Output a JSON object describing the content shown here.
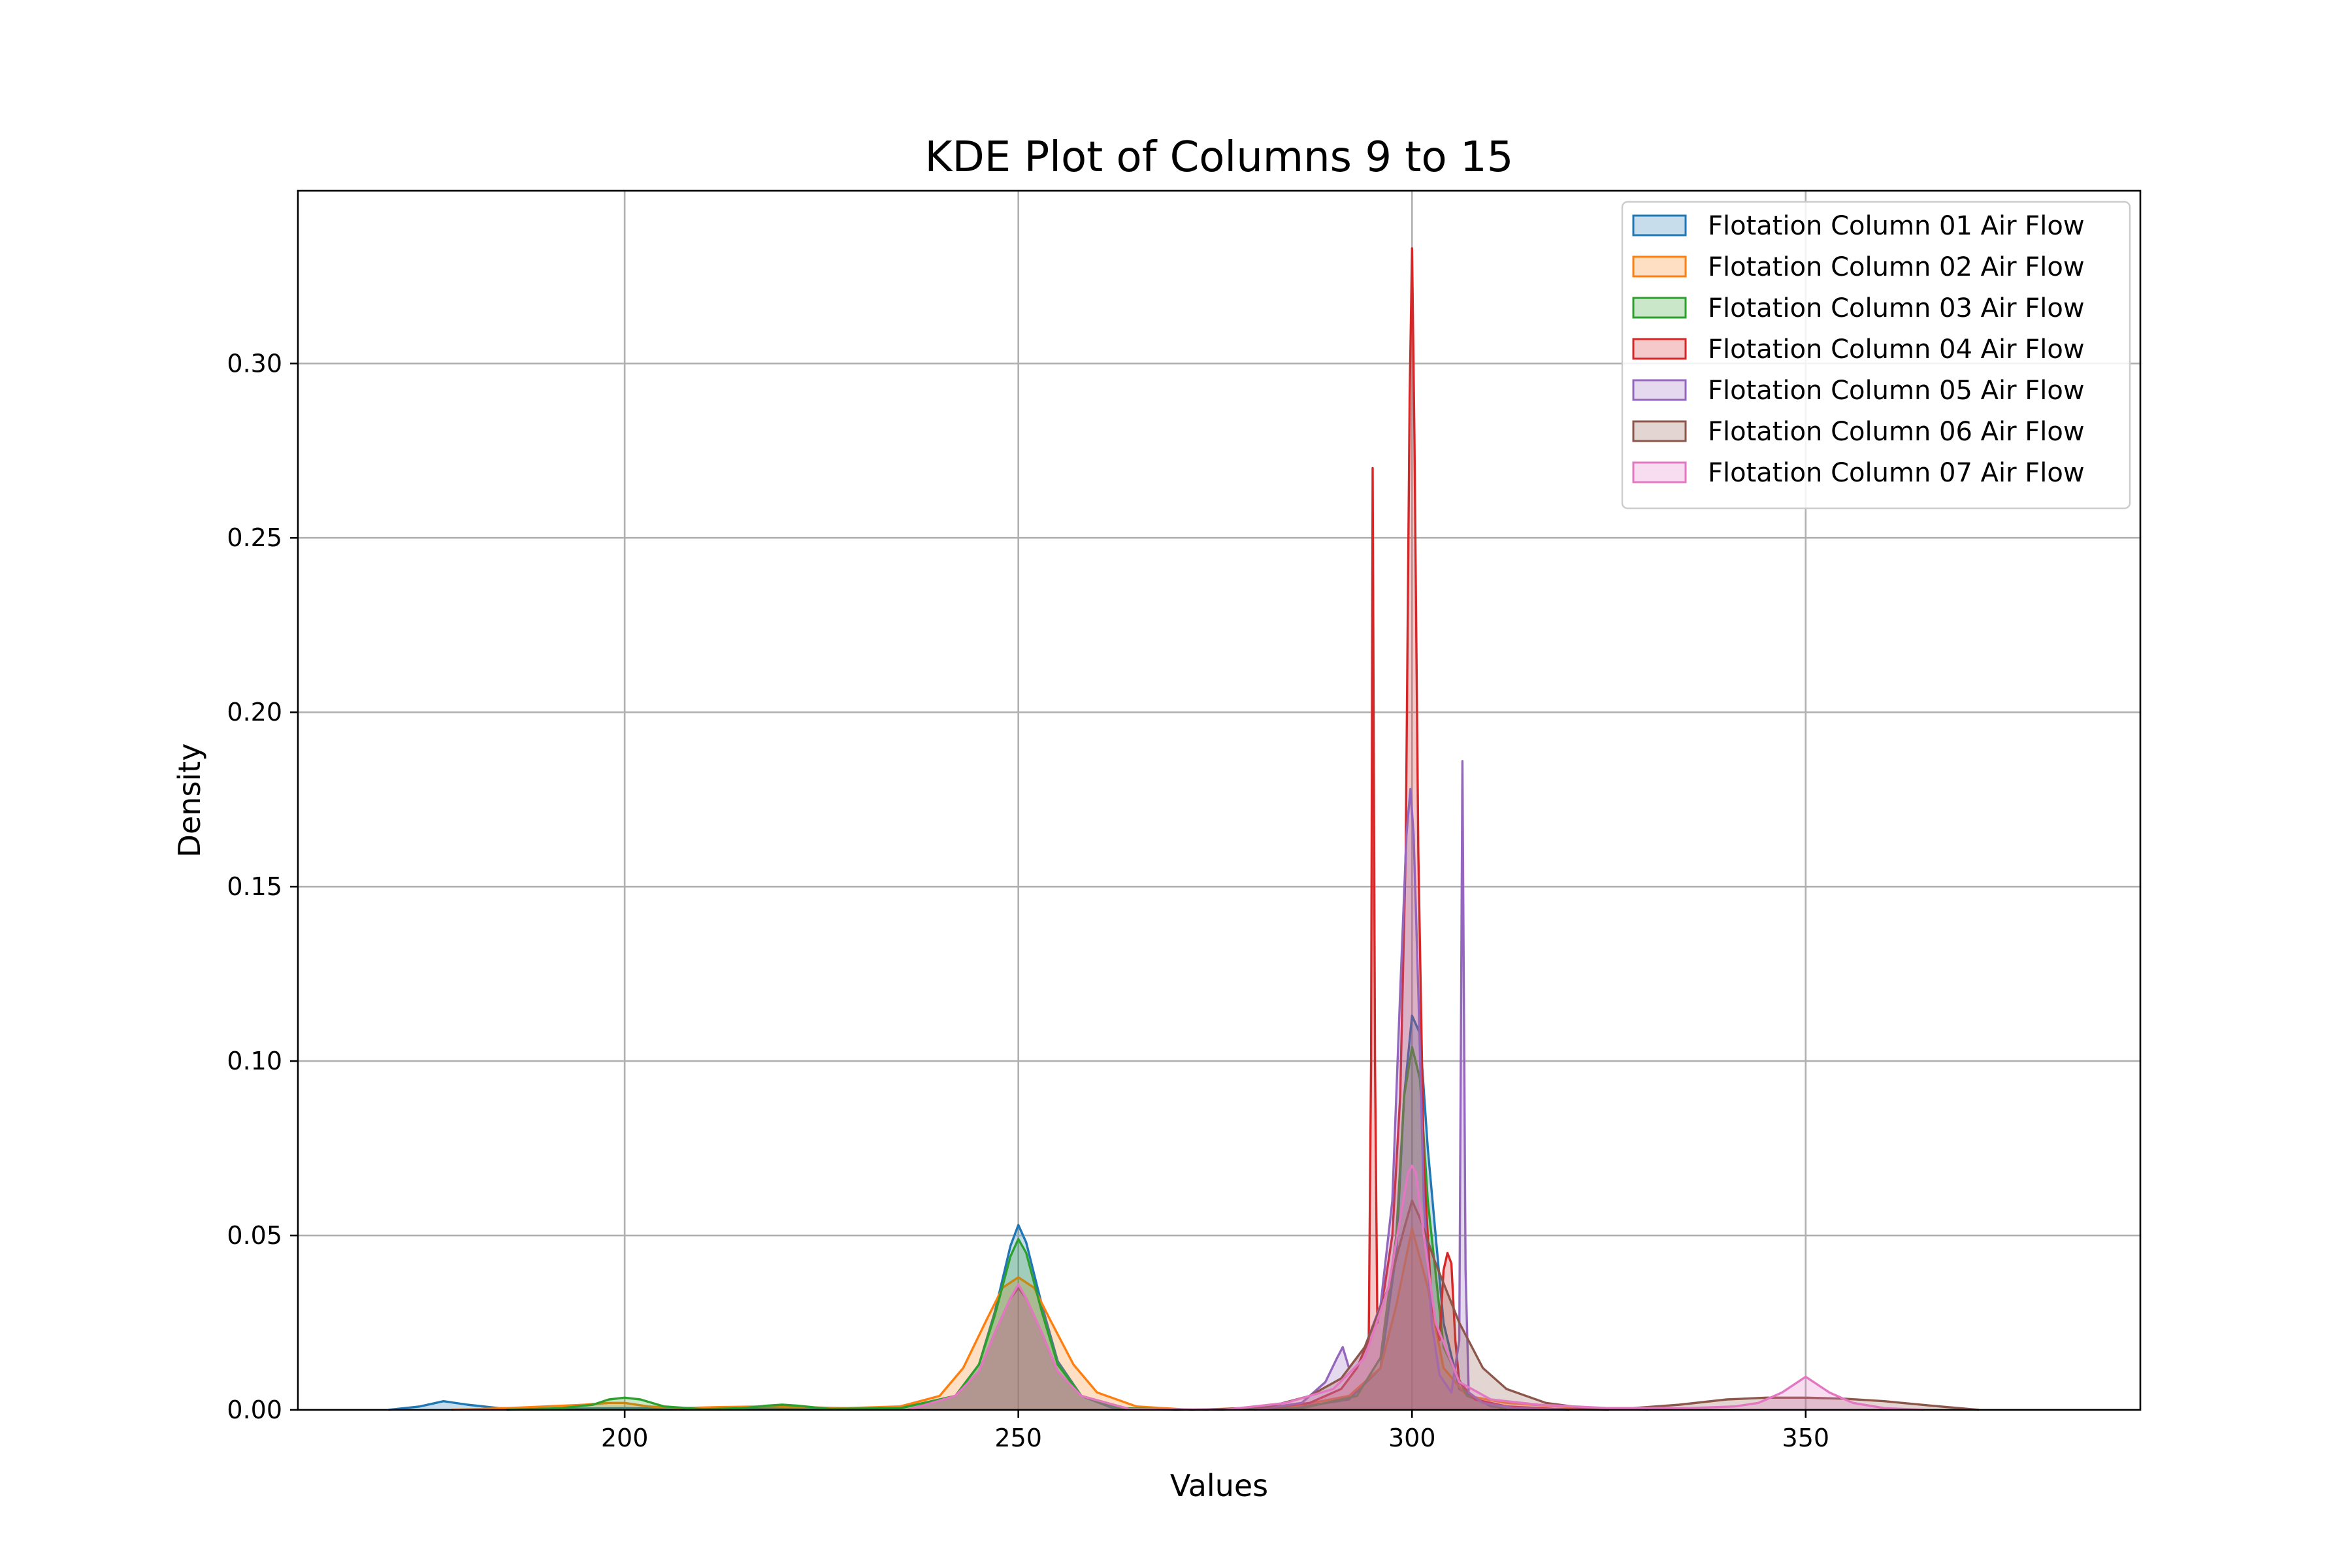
{
  "chart_data": {
    "type": "area",
    "title": "KDE Plot of Columns 9 to 15",
    "xlabel": "Values",
    "ylabel": "Density",
    "xlim": [
      158.5,
      392.5
    ],
    "ylim": [
      0,
      0.3495
    ],
    "xticks": [
      200,
      250,
      300,
      350
    ],
    "xtick_labels": [
      "200",
      "250",
      "300",
      "350"
    ],
    "yticks": [
      0.0,
      0.05,
      0.1,
      0.15,
      0.2,
      0.25,
      0.3
    ],
    "ytick_labels": [
      "0.00",
      "0.05",
      "0.10",
      "0.15",
      "0.20",
      "0.25",
      "0.30"
    ],
    "grid": true,
    "legend_position": "top-right",
    "series": [
      {
        "name": "Flotation Column 01 Air Flow",
        "color": "#1f77b4",
        "x": [
          170,
          174,
          177,
          180,
          184,
          190,
          200,
          210,
          220,
          235,
          242,
          245,
          247,
          249,
          250,
          251,
          253,
          255,
          258,
          262,
          270,
          285,
          292,
          296,
          298,
          299,
          300,
          301,
          302,
          304,
          306,
          310,
          315,
          320
        ],
        "y": [
          0,
          0.001,
          0.0025,
          0.0015,
          0.0005,
          0.0003,
          0.0005,
          0.0003,
          0.0005,
          0.0005,
          0.004,
          0.013,
          0.028,
          0.047,
          0.053,
          0.048,
          0.03,
          0.014,
          0.004,
          0.0005,
          0,
          0.0005,
          0.003,
          0.012,
          0.045,
          0.09,
          0.113,
          0.108,
          0.075,
          0.025,
          0.006,
          0.001,
          0.0002,
          0
        ]
      },
      {
        "name": "Flotation Column 02 Air Flow",
        "color": "#ff7f0e",
        "x": [
          178,
          185,
          190,
          195,
          198,
          200,
          203,
          207,
          212,
          218,
          222,
          228,
          235,
          240,
          243,
          246,
          248,
          250,
          252,
          254,
          257,
          260,
          265,
          272,
          285,
          292,
          296,
          298,
          300,
          302,
          304,
          307,
          312,
          320,
          330
        ],
        "y": [
          0,
          0.0005,
          0.001,
          0.0015,
          0.002,
          0.002,
          0.001,
          0.0005,
          0.0008,
          0.001,
          0.0008,
          0.0005,
          0.001,
          0.004,
          0.012,
          0.026,
          0.035,
          0.038,
          0.035,
          0.026,
          0.013,
          0.005,
          0.001,
          0,
          0.001,
          0.004,
          0.012,
          0.03,
          0.052,
          0.035,
          0.012,
          0.004,
          0.002,
          0.0008,
          0
        ]
      },
      {
        "name": "Flotation Column 03 Air Flow",
        "color": "#2ca02c",
        "x": [
          185,
          192,
          196,
          198,
          200,
          202,
          205,
          210,
          215,
          218,
          220,
          222,
          226,
          235,
          242,
          245,
          247,
          249,
          250,
          251,
          253,
          255,
          258,
          263,
          272,
          286,
          293,
          296,
          298,
          299,
          300,
          301,
          302,
          304,
          307,
          312
        ],
        "y": [
          0,
          0.0005,
          0.0015,
          0.003,
          0.0035,
          0.003,
          0.001,
          0.0002,
          0.0005,
          0.0012,
          0.0015,
          0.0012,
          0.0003,
          0.0005,
          0.004,
          0.013,
          0.027,
          0.044,
          0.049,
          0.045,
          0.028,
          0.013,
          0.004,
          0.0005,
          0,
          0.0005,
          0.004,
          0.015,
          0.05,
          0.09,
          0.104,
          0.095,
          0.06,
          0.018,
          0.004,
          0
        ]
      },
      {
        "name": "Flotation Column 04 Air Flow",
        "color": "#d62728",
        "x": [
          280,
          287,
          291,
          293,
          294.5,
          294.8,
          295.0,
          295.3,
          295.6,
          296.5,
          297.5,
          298.5,
          299.2,
          299.7,
          300.0,
          300.3,
          300.8,
          301.5,
          302.5,
          303.5,
          304.0,
          304.5,
          305.0,
          305.5,
          306,
          308,
          312,
          318,
          325
        ],
        "y": [
          0,
          0.002,
          0.006,
          0.012,
          0.02,
          0.1,
          0.27,
          0.1,
          0.025,
          0.035,
          0.05,
          0.09,
          0.16,
          0.29,
          0.333,
          0.28,
          0.16,
          0.07,
          0.03,
          0.02,
          0.04,
          0.045,
          0.042,
          0.02,
          0.008,
          0.003,
          0.001,
          0.0003,
          0
        ]
      },
      {
        "name": "Flotation Column 05 Air Flow",
        "color": "#9467bd",
        "x": [
          280,
          286,
          289,
          290.5,
          291.2,
          292,
          294,
          296,
          297.5,
          298.5,
          299.3,
          299.8,
          300.2,
          300.8,
          301.5,
          302.5,
          303.5,
          305,
          306.0,
          306.4,
          306.8,
          307.2,
          309,
          313,
          320
        ],
        "y": [
          0,
          0.002,
          0.008,
          0.015,
          0.018,
          0.012,
          0.018,
          0.03,
          0.06,
          0.12,
          0.165,
          0.178,
          0.165,
          0.12,
          0.06,
          0.025,
          0.01,
          0.005,
          0.02,
          0.186,
          0.04,
          0.005,
          0.002,
          0.0005,
          0
        ]
      },
      {
        "name": "Flotation Column 06 Air Flow",
        "color": "#8c564b",
        "x": [
          236,
          242,
          245,
          247,
          249,
          250,
          251,
          253,
          255,
          258,
          264,
          274,
          282,
          287,
          291,
          294,
          297,
          299,
          300,
          301,
          303,
          306,
          309,
          312,
          317,
          322,
          328,
          334,
          340,
          345,
          350,
          355,
          360,
          366,
          372
        ],
        "y": [
          0,
          0.004,
          0.011,
          0.022,
          0.032,
          0.035,
          0.032,
          0.022,
          0.011,
          0.004,
          0.0003,
          0,
          0.001,
          0.004,
          0.009,
          0.018,
          0.035,
          0.052,
          0.06,
          0.055,
          0.042,
          0.025,
          0.012,
          0.006,
          0.002,
          0.0005,
          0.0005,
          0.0015,
          0.003,
          0.0035,
          0.0035,
          0.0032,
          0.0025,
          0.0012,
          0
        ]
      },
      {
        "name": "Flotation Column 07 Air Flow",
        "color": "#e377c2",
        "x": [
          236,
          242,
          245,
          247,
          249,
          250,
          251,
          253,
          255,
          258,
          264,
          276,
          284,
          290,
          294,
          297,
          298.5,
          299.5,
          300,
          300.5,
          301.5,
          303,
          306,
          310,
          316,
          325,
          335,
          341,
          344,
          347,
          349,
          350,
          351,
          353,
          356,
          360,
          365
        ],
        "y": [
          0,
          0.004,
          0.011,
          0.022,
          0.032,
          0.036,
          0.032,
          0.022,
          0.011,
          0.004,
          0.0003,
          0,
          0.002,
          0.006,
          0.015,
          0.035,
          0.055,
          0.068,
          0.07,
          0.068,
          0.05,
          0.025,
          0.008,
          0.003,
          0.0015,
          0.0005,
          0.0005,
          0.001,
          0.002,
          0.005,
          0.008,
          0.0095,
          0.008,
          0.005,
          0.002,
          0.0005,
          0
        ]
      }
    ]
  }
}
